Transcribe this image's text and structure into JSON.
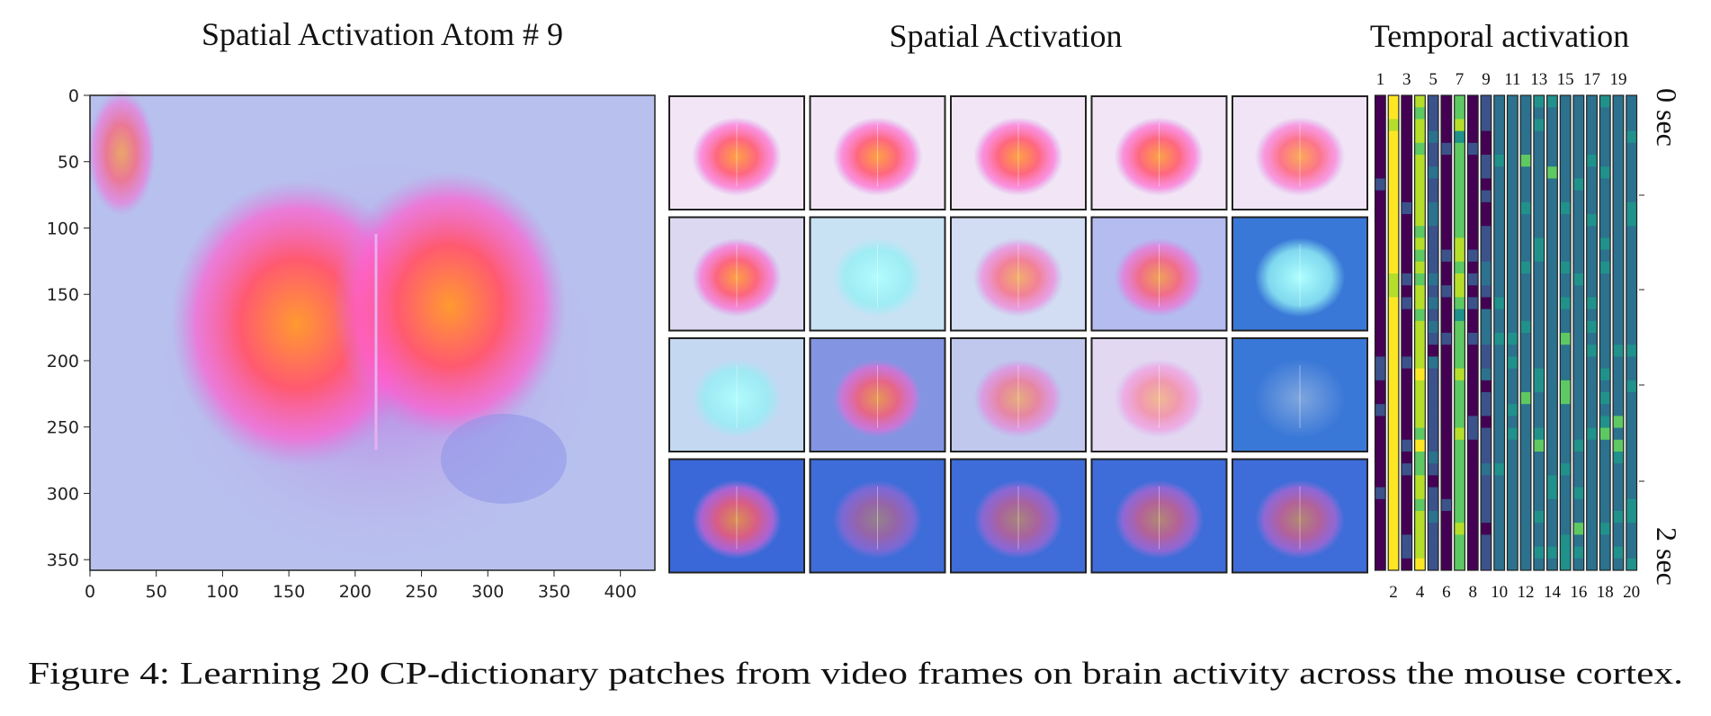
{
  "left_panel": {
    "title": "Spatial Activation Atom # 9",
    "xlim": [
      0,
      426
    ],
    "ylim": [
      0,
      358
    ],
    "xticks": [
      0,
      50,
      100,
      150,
      200,
      250,
      300,
      350,
      400
    ],
    "yticks": [
      0,
      50,
      100,
      150,
      200,
      250,
      300,
      350
    ]
  },
  "middle_panel": {
    "title": "Spatial Activation"
  },
  "temporal_panel": {
    "title": "Temporal activation",
    "columns": [
      1,
      2,
      3,
      4,
      5,
      6,
      7,
      8,
      9,
      10,
      11,
      12,
      13,
      14,
      15,
      16,
      17,
      18,
      19,
      20
    ],
    "time_labels": [
      "0 sec",
      "2 sec"
    ]
  },
  "caption": "Figure 4: Learning 20 CP-dictionary patches from video frames on brain activity across the mouse cortex."
}
